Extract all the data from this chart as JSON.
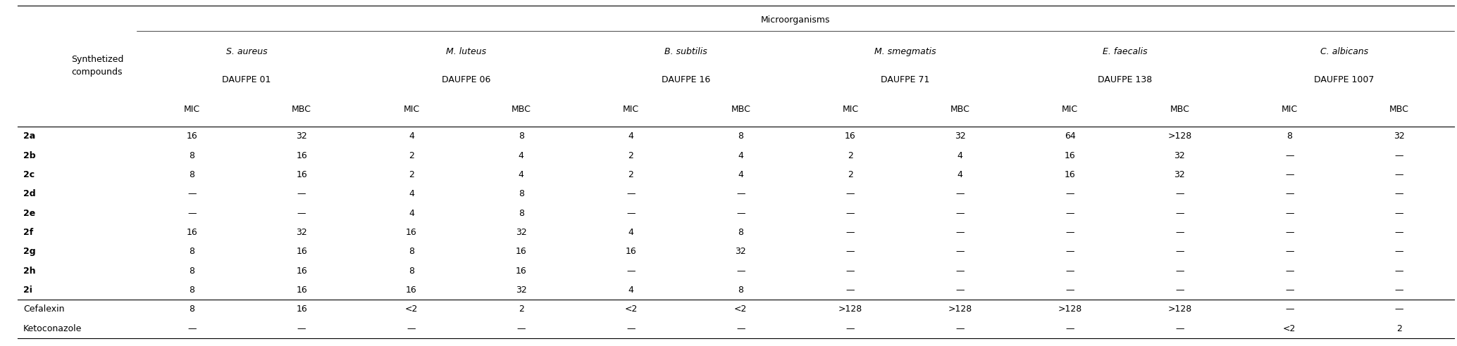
{
  "title": "Microorganisms",
  "organisms": [
    {
      "name": "S. aureus",
      "daufpe": "DAUFPE 01"
    },
    {
      "name": "M. luteus",
      "daufpe": "DAUFPE 06"
    },
    {
      "name": "B. subtilis",
      "daufpe": "DAUFPE 16"
    },
    {
      "name": "M. smegmatis",
      "daufpe": "DAUFPE 71"
    },
    {
      "name": "E. faecalis",
      "daufpe": "DAUFPE 138"
    },
    {
      "name": "C. albicans",
      "daufpe": "DAUFPE 1007"
    }
  ],
  "compounds": [
    "2a",
    "2b",
    "2c",
    "2d",
    "2e",
    "2f",
    "2g",
    "2h",
    "2i",
    "Cefalexin",
    "Ketoconazole"
  ],
  "compounds_bold": [
    true,
    true,
    true,
    true,
    true,
    true,
    true,
    true,
    true,
    false,
    false
  ],
  "data": [
    [
      "16",
      "32",
      "4",
      "8",
      "4",
      "8",
      "16",
      "32",
      "64",
      ">128",
      "8",
      "32"
    ],
    [
      "8",
      "16",
      "2",
      "4",
      "2",
      "4",
      "2",
      "4",
      "16",
      "32",
      "—",
      "—"
    ],
    [
      "8",
      "16",
      "2",
      "4",
      "2",
      "4",
      "2",
      "4",
      "16",
      "32",
      "—",
      "—"
    ],
    [
      "—",
      "—",
      "4",
      "8",
      "—",
      "—",
      "—",
      "—",
      "—",
      "—",
      "—",
      "—"
    ],
    [
      "—",
      "—",
      "4",
      "8",
      "—",
      "—",
      "—",
      "—",
      "—",
      "—",
      "—",
      "—"
    ],
    [
      "16",
      "32",
      "16",
      "32",
      "4",
      "8",
      "—",
      "—",
      "—",
      "—",
      "—",
      "—"
    ],
    [
      "8",
      "16",
      "8",
      "16",
      "16",
      "32",
      "—",
      "—",
      "—",
      "—",
      "—",
      "—"
    ],
    [
      "8",
      "16",
      "8",
      "16",
      "—",
      "—",
      "—",
      "—",
      "—",
      "—",
      "—",
      "—"
    ],
    [
      "8",
      "16",
      "16",
      "32",
      "4",
      "8",
      "—",
      "—",
      "—",
      "—",
      "—",
      "—"
    ],
    [
      "8",
      "16",
      "<2",
      "2",
      "<2",
      "<2",
      ">128",
      ">128",
      ">128",
      ">128",
      "—",
      "—"
    ],
    [
      "—",
      "—",
      "—",
      "—",
      "—",
      "—",
      "—",
      "—",
      "—",
      "—",
      "<2",
      "2"
    ]
  ],
  "bg_color": "#ffffff",
  "text_color": "#000000",
  "font_size": 9.0,
  "header_font_size": 9.0
}
